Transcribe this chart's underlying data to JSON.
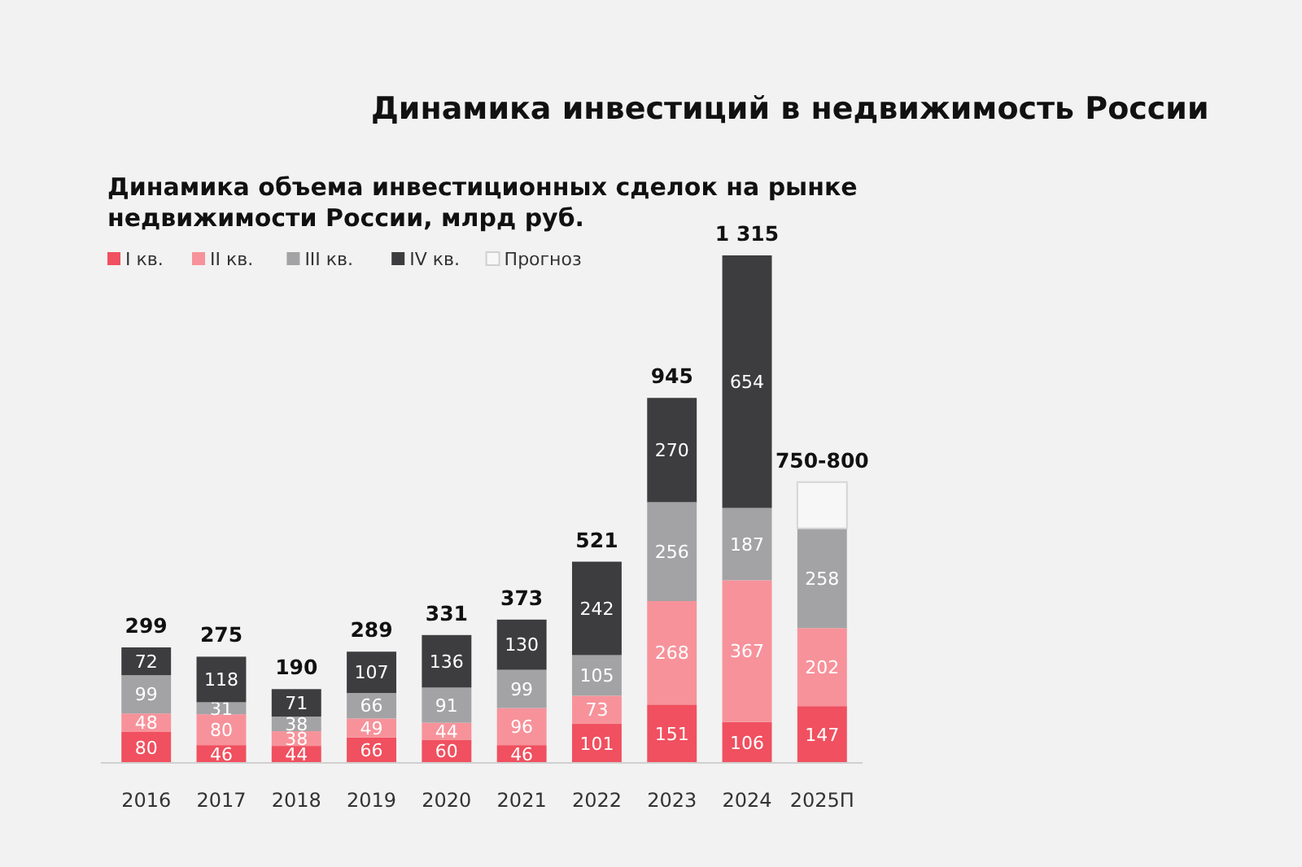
{
  "chart_data": {
    "type": "bar",
    "title": "Динамика инвестиций в недвижимость России",
    "subtitle": "Динамика объема инвестиционных сделок на рынке недвижимости России, млрд руб.",
    "stacked": true,
    "legend": "top left",
    "categories": [
      "2016",
      "2017",
      "2018",
      "2019",
      "2020",
      "2021",
      "2022",
      "2023",
      "2024",
      "2025П"
    ],
    "series": [
      {
        "name": "I кв.",
        "color": "#f0505f",
        "values": [
          80,
          46,
          44,
          66,
          60,
          46,
          101,
          151,
          106,
          147
        ],
        "value_labels": [
          "80",
          "46",
          "44",
          "66",
          "60",
          "46",
          "101",
          "151",
          "106",
          "147"
        ]
      },
      {
        "name": "II кв.",
        "color": "#f7929a",
        "values": [
          48,
          80,
          38,
          49,
          44,
          96,
          73,
          268,
          367,
          202
        ],
        "value_labels": [
          "48",
          "80",
          "38",
          "49",
          "44",
          "96",
          "73",
          "268",
          "367",
          "202"
        ]
      },
      {
        "name": "III кв.",
        "color": "#a3a3a5",
        "values": [
          99,
          31,
          38,
          66,
          91,
          99,
          105,
          256,
          187,
          258
        ],
        "value_labels": [
          "99",
          "31",
          "38",
          "66",
          "91",
          "99",
          "105",
          "256",
          "187",
          "258"
        ]
      },
      {
        "name": "IV кв.",
        "color": "#3d3d3f",
        "values": [
          72,
          118,
          71,
          107,
          136,
          130,
          242,
          270,
          654,
          null
        ],
        "value_labels": [
          "72",
          "118",
          "71",
          "107",
          "136",
          "130",
          "242",
          "270",
          "654",
          null
        ]
      },
      {
        "name": "Прогноз",
        "color": "#f7f7f7",
        "values": [
          null,
          null,
          null,
          null,
          null,
          null,
          null,
          null,
          null,
          120
        ]
      }
    ],
    "totals": [
      "299",
      "275",
      "190",
      "289",
      "331",
      "373",
      "521",
      "945",
      "1 315",
      "750-800"
    ]
  }
}
